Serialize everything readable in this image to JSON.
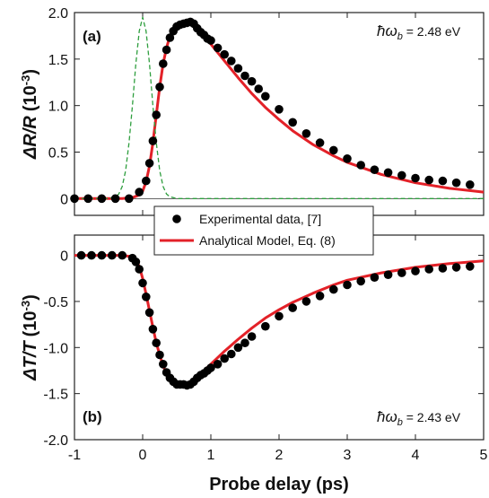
{
  "chart_data": [
    {
      "type": "scatter",
      "panel_label": "(a)",
      "ylabel_text": "ΔR/R (10⁻³)",
      "ylabel_parts": [
        "ΔR/R",
        "(10",
        "-3",
        ")"
      ],
      "annotation": {
        "symbol": "ħω",
        "subscript": "b",
        "value_text": " = 2.48 eV"
      },
      "xlim": [
        -1,
        5
      ],
      "ylim": [
        -0.18,
        2.0
      ],
      "x_ticks": [
        -1,
        0,
        1,
        2,
        3,
        4,
        5
      ],
      "y_ticks": [
        0,
        0.5,
        1.0,
        1.5,
        2.0
      ],
      "y_tick_labels": [
        "0",
        "0.5",
        "1.0",
        "1.5",
        "2.0"
      ],
      "zero_line": true,
      "grid": false,
      "series": [
        {
          "kind": "scatter",
          "color": "#000000",
          "x": [
            -1.0,
            -0.8,
            -0.6,
            -0.4,
            -0.2,
            -0.05,
            0.05,
            0.1,
            0.15,
            0.2,
            0.25,
            0.3,
            0.35,
            0.4,
            0.45,
            0.5,
            0.55,
            0.6,
            0.65,
            0.7,
            0.75,
            0.8,
            0.85,
            0.9,
            0.95,
            1.0,
            1.1,
            1.2,
            1.3,
            1.4,
            1.5,
            1.6,
            1.7,
            1.8,
            2.0,
            2.2,
            2.4,
            2.6,
            2.8,
            3.0,
            3.2,
            3.4,
            3.6,
            3.8,
            4.0,
            4.2,
            4.4,
            4.6,
            4.8
          ],
          "y": [
            0.0,
            0.0,
            0.0,
            0.0,
            0.0,
            0.07,
            0.19,
            0.38,
            0.62,
            0.9,
            1.2,
            1.45,
            1.6,
            1.73,
            1.8,
            1.85,
            1.87,
            1.88,
            1.89,
            1.9,
            1.88,
            1.83,
            1.79,
            1.76,
            1.72,
            1.7,
            1.62,
            1.55,
            1.48,
            1.4,
            1.32,
            1.26,
            1.18,
            1.1,
            0.96,
            0.82,
            0.7,
            0.6,
            0.52,
            0.43,
            0.36,
            0.31,
            0.28,
            0.25,
            0.22,
            0.2,
            0.19,
            0.17,
            0.15
          ]
        },
        {
          "kind": "line",
          "color": "#e32128",
          "x": [
            -1.0,
            -0.6,
            -0.3,
            -0.15,
            -0.05,
            0.0,
            0.05,
            0.1,
            0.15,
            0.2,
            0.25,
            0.3,
            0.35,
            0.4,
            0.45,
            0.5,
            0.55,
            0.6,
            0.65,
            0.7,
            0.8,
            0.9,
            1.0,
            1.2,
            1.4,
            1.6,
            1.8,
            2.0,
            2.2,
            2.5,
            2.8,
            3.0,
            3.5,
            4.0,
            4.5,
            5.0
          ],
          "y": [
            0.0,
            0.0,
            0.0,
            0.01,
            0.04,
            0.08,
            0.18,
            0.35,
            0.6,
            0.9,
            1.2,
            1.45,
            1.62,
            1.75,
            1.82,
            1.86,
            1.88,
            1.89,
            1.89,
            1.88,
            1.83,
            1.75,
            1.66,
            1.48,
            1.3,
            1.13,
            0.98,
            0.85,
            0.73,
            0.58,
            0.46,
            0.39,
            0.26,
            0.17,
            0.11,
            0.07
          ]
        },
        {
          "kind": "line",
          "dashed": true,
          "color": "#2e9e3e",
          "x": [
            -1.0,
            -0.5,
            -0.4,
            -0.35,
            -0.3,
            -0.25,
            -0.2,
            -0.15,
            -0.1,
            -0.05,
            0.0,
            0.05,
            0.1,
            0.15,
            0.2,
            0.25,
            0.3,
            0.35,
            0.4,
            0.5,
            1.0,
            5.0
          ],
          "y": [
            0.0,
            0.0,
            0.02,
            0.05,
            0.13,
            0.3,
            0.6,
            1.0,
            1.45,
            1.8,
            1.95,
            1.8,
            1.45,
            1.0,
            0.6,
            0.3,
            0.13,
            0.05,
            0.02,
            0.0,
            0.0,
            0.0
          ]
        }
      ]
    },
    {
      "type": "scatter",
      "panel_label": "(b)",
      "ylabel_text": "ΔT/T (10⁻³)",
      "ylabel_parts": [
        "ΔT/T",
        "(10",
        "-3",
        ")"
      ],
      "annotation": {
        "symbol": "ħω",
        "subscript": "b",
        "value_text": " = 2.43 eV"
      },
      "xlim": [
        -1,
        5
      ],
      "ylim": [
        -2.0,
        0.22
      ],
      "xlabel": "Probe delay (ps)",
      "x_ticks": [
        -1,
        0,
        1,
        2,
        3,
        4,
        5
      ],
      "x_tick_labels": [
        "-1",
        "0",
        "1",
        "2",
        "3",
        "4",
        "5"
      ],
      "y_ticks": [
        0,
        -0.5,
        -1.0,
        -1.5,
        -2.0
      ],
      "y_tick_labels": [
        "0",
        "-0.5",
        "-1.0",
        "-1.5",
        "-2.0"
      ],
      "grid": false,
      "series": [
        {
          "kind": "scatter",
          "color": "#000000",
          "x": [
            -0.9,
            -0.75,
            -0.6,
            -0.45,
            -0.3,
            -0.15,
            -0.1,
            -0.05,
            0.0,
            0.05,
            0.1,
            0.15,
            0.2,
            0.25,
            0.3,
            0.35,
            0.4,
            0.45,
            0.5,
            0.55,
            0.6,
            0.65,
            0.7,
            0.75,
            0.8,
            0.85,
            0.9,
            0.95,
            1.0,
            1.1,
            1.2,
            1.3,
            1.4,
            1.5,
            1.6,
            1.8,
            2.0,
            2.2,
            2.4,
            2.6,
            2.8,
            3.0,
            3.2,
            3.4,
            3.6,
            3.8,
            4.0,
            4.2,
            4.4,
            4.6,
            4.8
          ],
          "y": [
            0.0,
            0.0,
            0.0,
            0.0,
            0.0,
            -0.03,
            -0.07,
            -0.15,
            -0.3,
            -0.45,
            -0.62,
            -0.8,
            -0.95,
            -1.08,
            -1.18,
            -1.27,
            -1.33,
            -1.37,
            -1.4,
            -1.4,
            -1.4,
            -1.41,
            -1.4,
            -1.37,
            -1.33,
            -1.3,
            -1.28,
            -1.25,
            -1.22,
            -1.18,
            -1.12,
            -1.07,
            -1.0,
            -0.95,
            -0.88,
            -0.77,
            -0.66,
            -0.57,
            -0.5,
            -0.44,
            -0.37,
            -0.32,
            -0.28,
            -0.24,
            -0.21,
            -0.19,
            -0.17,
            -0.15,
            -0.14,
            -0.13,
            -0.12
          ]
        },
        {
          "kind": "line",
          "color": "#e32128",
          "x": [
            -1.0,
            -0.5,
            -0.3,
            -0.2,
            -0.1,
            -0.05,
            0.0,
            0.05,
            0.1,
            0.15,
            0.2,
            0.25,
            0.3,
            0.35,
            0.4,
            0.45,
            0.5,
            0.55,
            0.6,
            0.7,
            0.8,
            0.9,
            1.0,
            1.2,
            1.4,
            1.6,
            1.8,
            2.0,
            2.2,
            2.5,
            2.8,
            3.0,
            3.5,
            4.0,
            4.5,
            5.0
          ],
          "y": [
            0.0,
            0.0,
            0.0,
            -0.01,
            -0.05,
            -0.12,
            -0.25,
            -0.42,
            -0.6,
            -0.78,
            -0.95,
            -1.08,
            -1.2,
            -1.28,
            -1.34,
            -1.38,
            -1.4,
            -1.41,
            -1.4,
            -1.37,
            -1.31,
            -1.25,
            -1.18,
            -1.04,
            -0.91,
            -0.79,
            -0.68,
            -0.59,
            -0.51,
            -0.41,
            -0.32,
            -0.27,
            -0.19,
            -0.13,
            -0.09,
            -0.06
          ]
        }
      ]
    }
  ],
  "legend": {
    "placement": "center-left",
    "entries": [
      {
        "marker": "dot",
        "color": "#000000",
        "label": "Experimental data, [7]"
      },
      {
        "marker": "line",
        "color": "#e32128",
        "label": "Analytical Model, Eq. (8)"
      }
    ]
  }
}
